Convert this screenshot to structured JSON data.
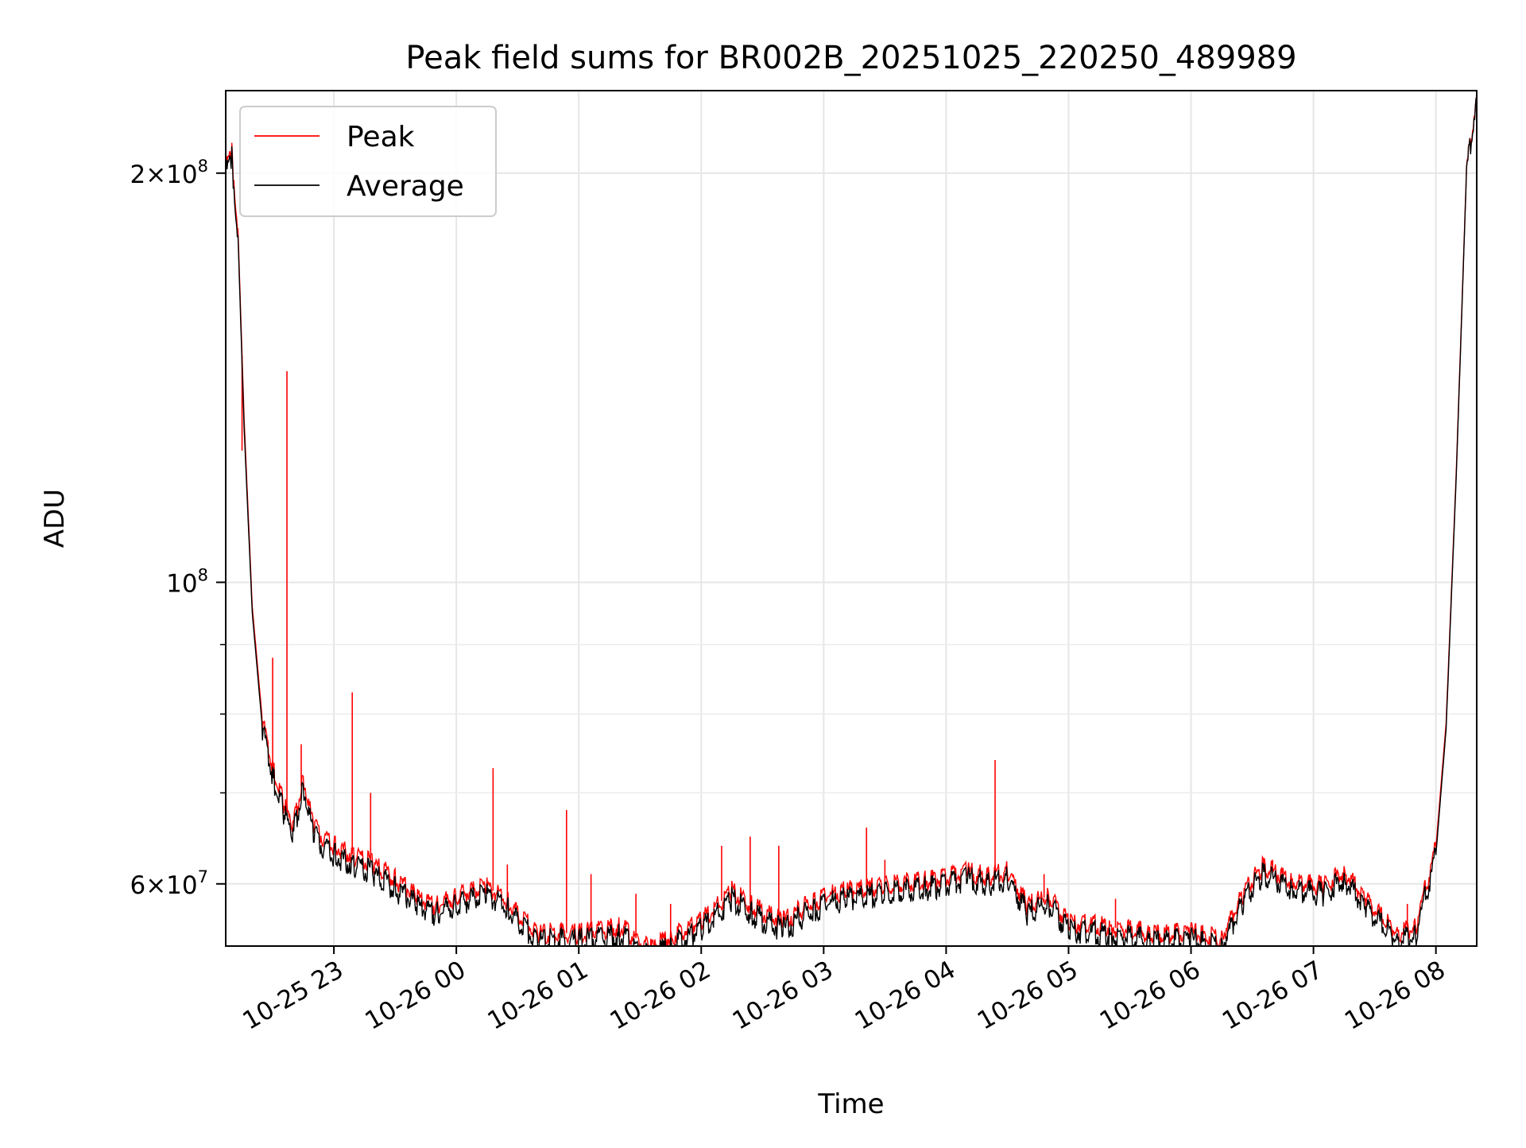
{
  "chart_data": {
    "type": "line",
    "title": "Peak field sums for BR002B_20251025_220250_489989",
    "xlabel": "Time",
    "ylabel": "ADU",
    "yscale": "log",
    "xlim": [
      "2025-10-25 22:07",
      "2025-10-26 08:20"
    ],
    "ylim": [
      54000000,
      230000000
    ],
    "grid": true,
    "legend": "top-left",
    "x_ticks": [
      {
        "x": "2025-10-25 23:00",
        "label": "10-25 23"
      },
      {
        "x": "2025-10-26 00:00",
        "label": "10-26 00"
      },
      {
        "x": "2025-10-26 01:00",
        "label": "10-26 01"
      },
      {
        "x": "2025-10-26 02:00",
        "label": "10-26 02"
      },
      {
        "x": "2025-10-26 03:00",
        "label": "10-26 03"
      },
      {
        "x": "2025-10-26 04:00",
        "label": "10-26 04"
      },
      {
        "x": "2025-10-26 05:00",
        "label": "10-26 05"
      },
      {
        "x": "2025-10-26 06:00",
        "label": "10-26 06"
      },
      {
        "x": "2025-10-26 07:00",
        "label": "10-26 07"
      },
      {
        "x": "2025-10-26 08:00",
        "label": "10-26 08"
      }
    ],
    "y_ticks": [
      {
        "y": 60000000,
        "mantissa": "6",
        "exponent": "7"
      },
      {
        "y": 100000000,
        "mantissa": "",
        "exponent": "8"
      },
      {
        "y": 200000000,
        "mantissa": "2",
        "exponent": "8"
      }
    ],
    "y_minor_ticks": [
      70000000,
      80000000,
      90000000
    ],
    "series": [
      {
        "name": "Average",
        "color": "#000000",
        "x": [
          "2025-10-25 22:07",
          "2025-10-25 22:10",
          "2025-10-25 22:13",
          "2025-10-25 22:16",
          "2025-10-25 22:20",
          "2025-10-25 22:25",
          "2025-10-25 22:30",
          "2025-10-25 22:35",
          "2025-10-25 22:40",
          "2025-10-25 22:45",
          "2025-10-25 22:50",
          "2025-10-25 23:00",
          "2025-10-25 23:10",
          "2025-10-25 23:20",
          "2025-10-25 23:30",
          "2025-10-25 23:40",
          "2025-10-25 23:50",
          "2025-10-26 00:00",
          "2025-10-26 00:15",
          "2025-10-26 00:25",
          "2025-10-26 00:40",
          "2025-10-26 01:00",
          "2025-10-26 01:20",
          "2025-10-26 01:35",
          "2025-10-26 01:45",
          "2025-10-26 02:00",
          "2025-10-26 02:15",
          "2025-10-26 02:25",
          "2025-10-26 02:40",
          "2025-10-26 02:55",
          "2025-10-26 03:10",
          "2025-10-26 03:30",
          "2025-10-26 03:50",
          "2025-10-26 04:10",
          "2025-10-26 04:20",
          "2025-10-26 04:30",
          "2025-10-26 04:40",
          "2025-10-26 04:50",
          "2025-10-26 05:00",
          "2025-10-26 05:20",
          "2025-10-26 05:40",
          "2025-10-26 06:00",
          "2025-10-26 06:15",
          "2025-10-26 06:25",
          "2025-10-26 06:35",
          "2025-10-26 06:50",
          "2025-10-26 07:05",
          "2025-10-26 07:15",
          "2025-10-26 07:25",
          "2025-10-26 07:40",
          "2025-10-26 07:50",
          "2025-10-26 08:00",
          "2025-10-26 08:05",
          "2025-10-26 08:10",
          "2025-10-26 08:15",
          "2025-10-26 08:20"
        ],
        "values": [
          200000000,
          205000000,
          180000000,
          130000000,
          95000000,
          78000000,
          72000000,
          68000000,
          65000000,
          71000000,
          65000000,
          63000000,
          62000000,
          61000000,
          59500000,
          58000000,
          57000000,
          58000000,
          59000000,
          57500000,
          54500000,
          54500000,
          55000000,
          53000000,
          54000000,
          55500000,
          58500000,
          57000000,
          55500000,
          57500000,
          58500000,
          59000000,
          59500000,
          60500000,
          60000000,
          60500000,
          57000000,
          58000000,
          55500000,
          55000000,
          54500000,
          54500000,
          54000000,
          58000000,
          61000000,
          59500000,
          59000000,
          60500000,
          58000000,
          54500000,
          55000000,
          63000000,
          78000000,
          120000000,
          200000000,
          228000000
        ]
      },
      {
        "name": "Peak",
        "color": "#ff0000",
        "x": [
          "2025-10-25 22:07",
          "2025-10-25 22:10",
          "2025-10-25 22:13",
          "2025-10-25 22:16",
          "2025-10-25 22:20",
          "2025-10-25 22:25",
          "2025-10-25 22:30",
          "2025-10-25 22:35",
          "2025-10-25 22:40",
          "2025-10-25 22:45",
          "2025-10-25 22:50",
          "2025-10-25 23:00",
          "2025-10-25 23:10",
          "2025-10-25 23:20",
          "2025-10-25 23:30",
          "2025-10-25 23:40",
          "2025-10-25 23:50",
          "2025-10-26 00:00",
          "2025-10-26 00:15",
          "2025-10-26 00:25",
          "2025-10-26 00:40",
          "2025-10-26 01:00",
          "2025-10-26 01:20",
          "2025-10-26 01:35",
          "2025-10-26 01:45",
          "2025-10-26 02:00",
          "2025-10-26 02:15",
          "2025-10-26 02:25",
          "2025-10-26 02:40",
          "2025-10-26 02:55",
          "2025-10-26 03:10",
          "2025-10-26 03:30",
          "2025-10-26 03:50",
          "2025-10-26 04:10",
          "2025-10-26 04:20",
          "2025-10-26 04:30",
          "2025-10-26 04:40",
          "2025-10-26 04:50",
          "2025-10-26 05:00",
          "2025-10-26 05:20",
          "2025-10-26 05:40",
          "2025-10-26 06:00",
          "2025-10-26 06:15",
          "2025-10-26 06:25",
          "2025-10-26 06:35",
          "2025-10-26 06:50",
          "2025-10-26 07:05",
          "2025-10-26 07:15",
          "2025-10-26 07:25",
          "2025-10-26 07:40",
          "2025-10-26 07:50",
          "2025-10-26 08:00",
          "2025-10-26 08:05",
          "2025-10-26 08:10",
          "2025-10-26 08:15",
          "2025-10-26 08:20"
        ],
        "values": [
          202000000,
          207000000,
          182000000,
          132000000,
          96000000,
          79000000,
          73000000,
          69000000,
          66000000,
          72000000,
          66000000,
          64000000,
          63000000,
          62000000,
          60500000,
          58800000,
          57800000,
          58800000,
          59800000,
          58200000,
          55200000,
          55200000,
          55800000,
          53800000,
          54800000,
          56300000,
          59300000,
          57800000,
          56300000,
          58300000,
          59300000,
          59800000,
          60300000,
          61200000,
          60800000,
          61300000,
          57800000,
          58800000,
          56200000,
          55800000,
          55200000,
          55200000,
          54800000,
          58800000,
          61800000,
          60300000,
          59800000,
          61300000,
          58800000,
          55200000,
          55800000,
          63800000,
          78800000,
          121000000,
          201000000,
          228000000
        ],
        "spikes": [
          {
            "x": "2025-10-25 22:15",
            "value": 125000000
          },
          {
            "x": "2025-10-25 22:30",
            "value": 88000000
          },
          {
            "x": "2025-10-25 22:37",
            "value": 143000000
          },
          {
            "x": "2025-10-25 22:44",
            "value": 76000000
          },
          {
            "x": "2025-10-25 23:09",
            "value": 83000000
          },
          {
            "x": "2025-10-25 23:18",
            "value": 70000000
          },
          {
            "x": "2025-10-26 00:18",
            "value": 73000000
          },
          {
            "x": "2025-10-26 00:25",
            "value": 62000000
          },
          {
            "x": "2025-10-26 00:54",
            "value": 68000000
          },
          {
            "x": "2025-10-26 01:06",
            "value": 61000000
          },
          {
            "x": "2025-10-26 01:28",
            "value": 59000000
          },
          {
            "x": "2025-10-26 01:45",
            "value": 58000000
          },
          {
            "x": "2025-10-26 02:10",
            "value": 64000000
          },
          {
            "x": "2025-10-26 02:24",
            "value": 65000000
          },
          {
            "x": "2025-10-26 02:38",
            "value": 64000000
          },
          {
            "x": "2025-10-26 03:21",
            "value": 66000000
          },
          {
            "x": "2025-10-26 03:30",
            "value": 62500000
          },
          {
            "x": "2025-10-26 04:24",
            "value": 74000000
          },
          {
            "x": "2025-10-26 04:48",
            "value": 61000000
          },
          {
            "x": "2025-10-26 05:23",
            "value": 58500000
          },
          {
            "x": "2025-10-26 06:40",
            "value": 62500000
          },
          {
            "x": "2025-10-26 07:46",
            "value": 58000000
          }
        ]
      }
    ]
  }
}
